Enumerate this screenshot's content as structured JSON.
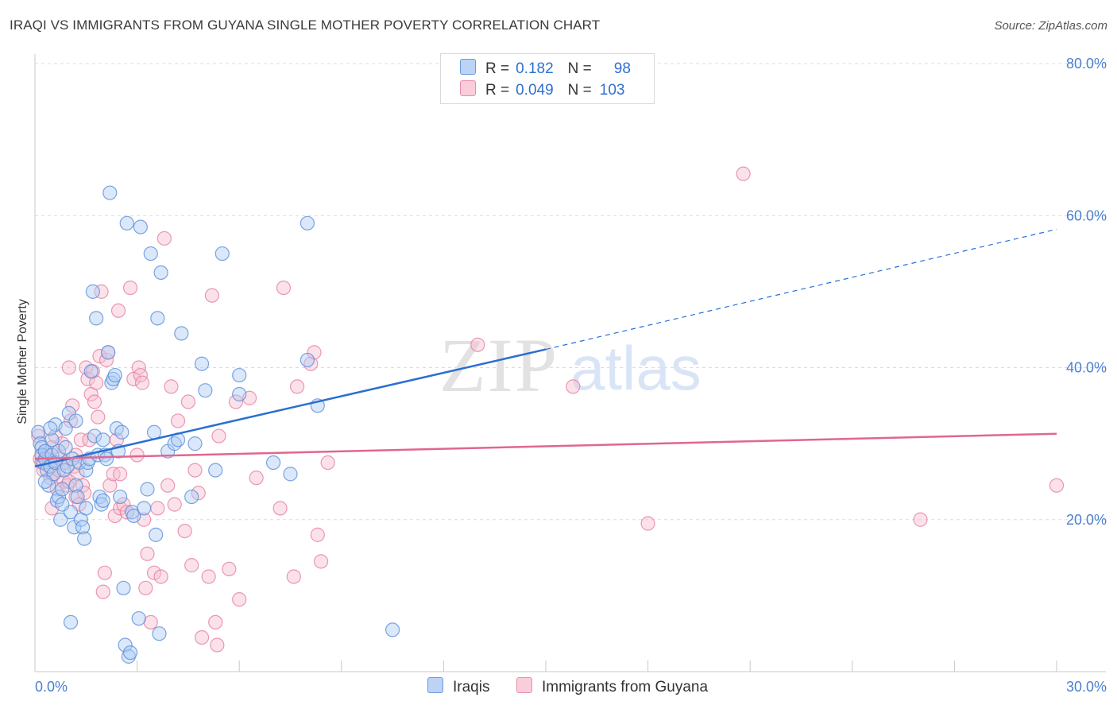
{
  "header": {
    "title": "IRAQI VS IMMIGRANTS FROM GUYANA SINGLE MOTHER POVERTY CORRELATION CHART",
    "source": "Source: ZipAtlas.com"
  },
  "legend": {
    "rows": [
      {
        "r_label": "R =",
        "r_value": "0.182",
        "n_label": "N =",
        "n_value": "98"
      },
      {
        "r_label": "R =",
        "r_value": "0.049",
        "n_label": "N =",
        "n_value": "103"
      }
    ]
  },
  "watermark": {
    "zip": "ZIP",
    "atlas": "atlas"
  },
  "colors": {
    "iraqis_fill": "#aecbf3",
    "iraqis_stroke": "#5b8fd9",
    "iraqis_line": "#2a6fcf",
    "guyana_fill": "#f7bfd0",
    "guyana_stroke": "#e67fa0",
    "guyana_line": "#e0678f",
    "tick_label": "#4a7fd0",
    "grid": "#dcdcdc"
  },
  "chart_data": {
    "type": "scatter",
    "title": "IRAQI VS IMMIGRANTS FROM GUYANA SINGLE MOTHER POVERTY CORRELATION CHART",
    "xlabel": "",
    "ylabel": "Single Mother Poverty",
    "xlim": [
      0,
      30
    ],
    "ylim": [
      0,
      80
    ],
    "x_ticks": [
      "0.0%",
      "30.0%"
    ],
    "y_ticks": [
      {
        "value": 20,
        "label": "20.0%"
      },
      {
        "value": 40,
        "label": "40.0%"
      },
      {
        "value": 60,
        "label": "60.0%"
      },
      {
        "value": 80,
        "label": "80.0%"
      }
    ],
    "grid": true,
    "legend_position": "bottom",
    "series": [
      {
        "name": "Iraqis",
        "r": 0.182,
        "n": 98,
        "trend": {
          "x0": 0,
          "y0": 27.0,
          "x1": 15,
          "y1": 42.4,
          "dashed_to_x": 30,
          "dashed_to_y": 58.2
        },
        "points": [
          [
            0.1,
            31.5
          ],
          [
            0.15,
            30.0
          ],
          [
            0.2,
            29.5
          ],
          [
            0.2,
            28.5
          ],
          [
            0.25,
            27.5
          ],
          [
            0.3,
            28.0
          ],
          [
            0.3,
            29.0
          ],
          [
            0.35,
            26.5
          ],
          [
            0.4,
            24.5
          ],
          [
            0.45,
            27.0
          ],
          [
            0.5,
            28.5
          ],
          [
            0.5,
            30.5
          ],
          [
            0.55,
            26.0
          ],
          [
            0.6,
            32.5
          ],
          [
            0.6,
            27.5
          ],
          [
            0.65,
            22.5
          ],
          [
            0.7,
            23.0
          ],
          [
            0.7,
            29.0
          ],
          [
            0.75,
            20.0
          ],
          [
            0.8,
            24.0
          ],
          [
            0.85,
            26.5
          ],
          [
            0.9,
            32.0
          ],
          [
            0.9,
            29.5
          ],
          [
            0.95,
            27.0
          ],
          [
            1.0,
            34.0
          ],
          [
            1.05,
            21.0
          ],
          [
            1.1,
            28.0
          ],
          [
            1.15,
            19.0
          ],
          [
            1.2,
            24.5
          ],
          [
            1.25,
            23.0
          ],
          [
            1.3,
            27.5
          ],
          [
            1.35,
            20.0
          ],
          [
            1.4,
            19.0
          ],
          [
            1.45,
            17.5
          ],
          [
            1.5,
            26.5
          ],
          [
            1.55,
            27.5
          ],
          [
            1.6,
            28.0
          ],
          [
            1.65,
            39.5
          ],
          [
            1.7,
            50.0
          ],
          [
            1.75,
            31.0
          ],
          [
            1.8,
            46.5
          ],
          [
            1.85,
            28.5
          ],
          [
            1.9,
            23.0
          ],
          [
            1.95,
            22.0
          ],
          [
            2.0,
            22.5
          ],
          [
            2.05,
            28.5
          ],
          [
            2.1,
            28.0
          ],
          [
            2.15,
            42.0
          ],
          [
            2.2,
            63.0
          ],
          [
            2.25,
            38.0
          ],
          [
            2.3,
            38.5
          ],
          [
            2.35,
            39.0
          ],
          [
            2.4,
            32.0
          ],
          [
            2.45,
            29.0
          ],
          [
            2.5,
            23.0
          ],
          [
            2.55,
            31.5
          ],
          [
            2.6,
            11.0
          ],
          [
            2.65,
            3.5
          ],
          [
            2.7,
            59.0
          ],
          [
            2.75,
            2.0
          ],
          [
            2.8,
            2.5
          ],
          [
            2.85,
            21.0
          ],
          [
            2.9,
            20.5
          ],
          [
            3.05,
            7.0
          ],
          [
            3.1,
            58.5
          ],
          [
            3.2,
            21.5
          ],
          [
            3.3,
            24.0
          ],
          [
            3.4,
            55.0
          ],
          [
            3.5,
            31.5
          ],
          [
            3.55,
            18.0
          ],
          [
            3.6,
            46.5
          ],
          [
            3.65,
            5.0
          ],
          [
            3.7,
            52.5
          ],
          [
            3.9,
            29.0
          ],
          [
            4.1,
            30.0
          ],
          [
            4.2,
            30.5
          ],
          [
            4.3,
            44.5
          ],
          [
            4.6,
            23.0
          ],
          [
            4.7,
            30.0
          ],
          [
            4.9,
            40.5
          ],
          [
            5.0,
            37.0
          ],
          [
            5.3,
            26.5
          ],
          [
            5.5,
            55.0
          ],
          [
            6.0,
            39.0
          ],
          [
            6.0,
            36.5
          ],
          [
            7.0,
            27.5
          ],
          [
            7.5,
            26.0
          ],
          [
            8.0,
            59.0
          ],
          [
            8.0,
            41.0
          ],
          [
            8.3,
            35.0
          ],
          [
            10.5,
            5.5
          ],
          [
            1.05,
            6.5
          ],
          [
            0.45,
            32.0
          ],
          [
            0.3,
            25.0
          ],
          [
            1.2,
            33.0
          ],
          [
            0.8,
            22.0
          ],
          [
            1.5,
            21.5
          ],
          [
            2.0,
            30.5
          ]
        ]
      },
      {
        "name": "Immigrants from Guyana",
        "r": 0.049,
        "n": 103,
        "trend": {
          "x0": 0,
          "y0": 28.0,
          "x1": 30,
          "y1": 31.3
        },
        "points": [
          [
            0.1,
            31.0
          ],
          [
            0.15,
            28.0
          ],
          [
            0.2,
            27.5
          ],
          [
            0.25,
            26.5
          ],
          [
            0.3,
            29.0
          ],
          [
            0.35,
            28.5
          ],
          [
            0.4,
            27.0
          ],
          [
            0.45,
            25.5
          ],
          [
            0.5,
            29.5
          ],
          [
            0.55,
            26.0
          ],
          [
            0.6,
            31.0
          ],
          [
            0.65,
            24.0
          ],
          [
            0.7,
            26.5
          ],
          [
            0.75,
            28.0
          ],
          [
            0.8,
            30.0
          ],
          [
            0.85,
            25.0
          ],
          [
            0.9,
            27.5
          ],
          [
            0.95,
            24.5
          ],
          [
            1.0,
            40.0
          ],
          [
            1.05,
            33.0
          ],
          [
            1.1,
            35.0
          ],
          [
            1.15,
            27.0
          ],
          [
            1.2,
            23.0
          ],
          [
            1.25,
            26.0
          ],
          [
            1.3,
            22.0
          ],
          [
            1.35,
            30.5
          ],
          [
            1.4,
            24.5
          ],
          [
            1.45,
            23.5
          ],
          [
            1.5,
            40.0
          ],
          [
            1.55,
            38.5
          ],
          [
            1.6,
            30.5
          ],
          [
            1.65,
            36.5
          ],
          [
            1.7,
            39.5
          ],
          [
            1.75,
            35.5
          ],
          [
            1.8,
            38.0
          ],
          [
            1.85,
            33.5
          ],
          [
            1.9,
            41.5
          ],
          [
            1.95,
            50.0
          ],
          [
            2.0,
            10.5
          ],
          [
            2.05,
            13.0
          ],
          [
            2.1,
            41.0
          ],
          [
            2.15,
            42.0
          ],
          [
            2.2,
            24.5
          ],
          [
            2.3,
            26.0
          ],
          [
            2.35,
            20.5
          ],
          [
            2.4,
            30.5
          ],
          [
            2.45,
            47.5
          ],
          [
            2.5,
            21.5
          ],
          [
            2.6,
            22.0
          ],
          [
            2.7,
            21.0
          ],
          [
            2.8,
            50.5
          ],
          [
            2.9,
            38.5
          ],
          [
            3.0,
            28.5
          ],
          [
            3.05,
            40.0
          ],
          [
            3.1,
            39.0
          ],
          [
            3.15,
            38.0
          ],
          [
            3.2,
            20.0
          ],
          [
            3.25,
            11.0
          ],
          [
            3.3,
            15.5
          ],
          [
            3.4,
            6.5
          ],
          [
            3.5,
            13.0
          ],
          [
            3.6,
            21.5
          ],
          [
            3.7,
            12.5
          ],
          [
            3.8,
            57.0
          ],
          [
            3.9,
            24.5
          ],
          [
            4.0,
            37.5
          ],
          [
            4.1,
            22.0
          ],
          [
            4.2,
            33.0
          ],
          [
            4.4,
            18.5
          ],
          [
            4.5,
            35.5
          ],
          [
            4.6,
            14.0
          ],
          [
            4.7,
            26.5
          ],
          [
            4.8,
            23.5
          ],
          [
            4.9,
            4.5
          ],
          [
            5.1,
            12.5
          ],
          [
            5.2,
            49.5
          ],
          [
            5.3,
            6.5
          ],
          [
            5.35,
            3.5
          ],
          [
            5.4,
            31.0
          ],
          [
            5.7,
            13.5
          ],
          [
            5.9,
            35.5
          ],
          [
            6.0,
            9.5
          ],
          [
            6.3,
            36.0
          ],
          [
            6.5,
            25.5
          ],
          [
            7.2,
            21.5
          ],
          [
            7.3,
            50.5
          ],
          [
            7.6,
            12.5
          ],
          [
            7.7,
            37.5
          ],
          [
            8.1,
            40.5
          ],
          [
            8.2,
            42.0
          ],
          [
            8.3,
            18.0
          ],
          [
            8.4,
            14.5
          ],
          [
            8.6,
            27.5
          ],
          [
            13.0,
            43.0
          ],
          [
            15.8,
            37.5
          ],
          [
            18.0,
            19.5
          ],
          [
            20.8,
            65.5
          ],
          [
            26.0,
            20.0
          ],
          [
            30.0,
            24.5
          ],
          [
            0.5,
            21.5
          ],
          [
            1.2,
            28.5
          ],
          [
            2.5,
            26.0
          ],
          [
            1.0,
            25.0
          ]
        ]
      }
    ]
  }
}
